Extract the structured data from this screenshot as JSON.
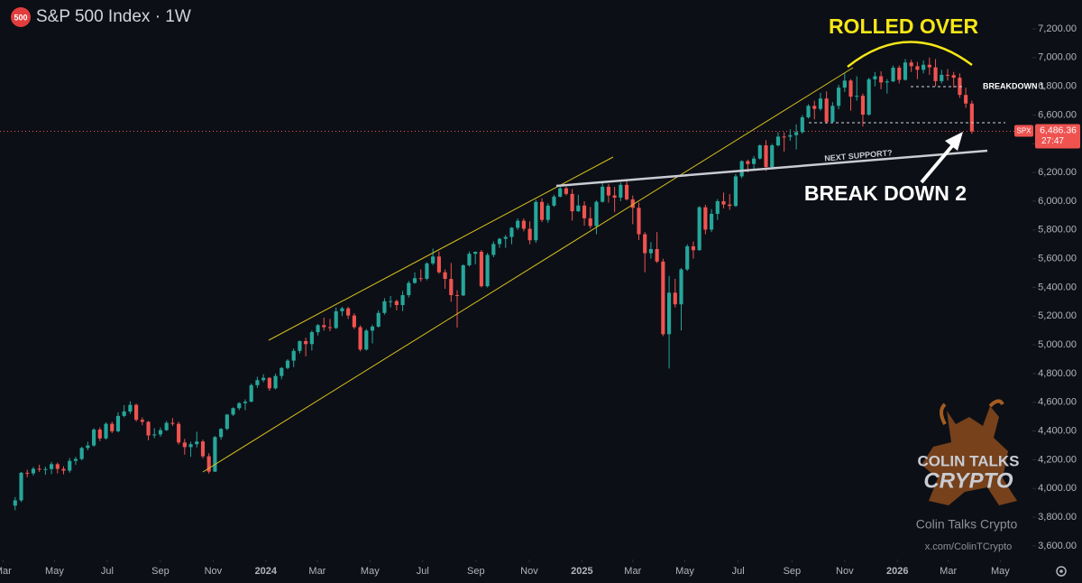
{
  "chart_data": {
    "type": "candlestick",
    "badge": "500",
    "title": "S&P 500 Index · 1W",
    "ylim": [
      3505,
      7401
    ],
    "yticks": [
      {
        "value": 3600,
        "label": "3,600.00"
      },
      {
        "value": 3800,
        "label": "3,800.00"
      },
      {
        "value": 4000,
        "label": "4,000.00"
      },
      {
        "value": 4200,
        "label": "4,200.00"
      },
      {
        "value": 4400,
        "label": "4,400.00"
      },
      {
        "value": 4600,
        "label": "4,600.00"
      },
      {
        "value": 4800,
        "label": "4,800.00"
      },
      {
        "value": 5000,
        "label": "5,000.00"
      },
      {
        "value": 5200,
        "label": "5,200.00"
      },
      {
        "value": 5400,
        "label": "5,400.00"
      },
      {
        "value": 5600,
        "label": "5,600.00"
      },
      {
        "value": 5800,
        "label": "5,800.00"
      },
      {
        "value": 6000,
        "label": "6,000.00"
      },
      {
        "value": 6200,
        "label": "6,200.00"
      },
      {
        "value": 6400,
        "label": "6,400.00"
      },
      {
        "value": 6600,
        "label": "6,600.00"
      },
      {
        "value": 6800,
        "label": "6,800.00"
      },
      {
        "value": 7000,
        "label": "7,000.00"
      },
      {
        "value": 7200,
        "label": "7,200.00"
      }
    ],
    "xlim": [
      -2.5,
      168
    ],
    "xticks": [
      {
        "value": -2,
        "label": "Mar"
      },
      {
        "value": 6.5,
        "label": "May"
      },
      {
        "value": 15.2,
        "label": "Jul"
      },
      {
        "value": 24,
        "label": "Sep"
      },
      {
        "value": 32.7,
        "label": "Nov"
      },
      {
        "value": 41.4,
        "label": "2024"
      },
      {
        "value": 49.9,
        "label": "Mar"
      },
      {
        "value": 58.6,
        "label": "May"
      },
      {
        "value": 67.3,
        "label": "Jul"
      },
      {
        "value": 76.1,
        "label": "Sep"
      },
      {
        "value": 84.9,
        "label": "Nov"
      },
      {
        "value": 93.6,
        "label": "2025"
      },
      {
        "value": 102,
        "label": "Mar"
      },
      {
        "value": 110.6,
        "label": "May"
      },
      {
        "value": 119.4,
        "label": "Jul"
      },
      {
        "value": 128.3,
        "label": "Sep"
      },
      {
        "value": 137,
        "label": "Nov"
      },
      {
        "value": 145.7,
        "label": "2026"
      },
      {
        "value": 154.1,
        "label": "Mar"
      },
      {
        "value": 162.7,
        "label": "May"
      }
    ],
    "series": [
      {
        "name": "SPX",
        "up_color": "#26a69a",
        "down_color": "#ef5350",
        "values": [
          [
            3880,
            3940,
            3848,
            3917
          ],
          [
            3917,
            4115,
            3905,
            4109
          ],
          [
            4109,
            4130,
            4078,
            4105
          ],
          [
            4105,
            4150,
            4090,
            4137
          ],
          [
            4137,
            4165,
            4115,
            4133
          ],
          [
            4133,
            4152,
            4095,
            4135
          ],
          [
            4135,
            4185,
            4100,
            4169
          ],
          [
            4169,
            4180,
            4105,
            4136
          ],
          [
            4136,
            4155,
            4098,
            4124
          ],
          [
            4124,
            4212,
            4110,
            4192
          ],
          [
            4192,
            4220,
            4165,
            4205
          ],
          [
            4205,
            4290,
            4195,
            4282
          ],
          [
            4282,
            4325,
            4265,
            4299
          ],
          [
            4299,
            4420,
            4290,
            4410
          ],
          [
            4410,
            4425,
            4330,
            4348
          ],
          [
            4348,
            4460,
            4340,
            4450
          ],
          [
            4450,
            4465,
            4385,
            4398
          ],
          [
            4398,
            4530,
            4390,
            4505
          ],
          [
            4505,
            4580,
            4495,
            4536
          ],
          [
            4536,
            4607,
            4520,
            4582
          ],
          [
            4582,
            4590,
            4465,
            4478
          ],
          [
            4478,
            4495,
            4440,
            4464
          ],
          [
            4464,
            4470,
            4335,
            4369
          ],
          [
            4369,
            4420,
            4350,
            4376
          ],
          [
            4376,
            4425,
            4360,
            4406
          ],
          [
            4406,
            4470,
            4400,
            4457
          ],
          [
            4457,
            4490,
            4435,
            4450
          ],
          [
            4450,
            4465,
            4305,
            4320
          ],
          [
            4320,
            4345,
            4235,
            4288
          ],
          [
            4288,
            4325,
            4220,
            4308
          ],
          [
            4308,
            4395,
            4285,
            4327
          ],
          [
            4327,
            4340,
            4210,
            4224
          ],
          [
            4224,
            4245,
            4103,
            4117
          ],
          [
            4117,
            4365,
            4115,
            4358
          ],
          [
            4358,
            4420,
            4340,
            4415
          ],
          [
            4415,
            4520,
            4405,
            4514
          ],
          [
            4514,
            4565,
            4505,
            4559
          ],
          [
            4559,
            4600,
            4545,
            4594
          ],
          [
            4594,
            4620,
            4545,
            4604
          ],
          [
            4604,
            4730,
            4600,
            4719
          ],
          [
            4719,
            4778,
            4700,
            4754
          ],
          [
            4754,
            4795,
            4740,
            4770
          ],
          [
            4770,
            4775,
            4680,
            4697
          ],
          [
            4697,
            4800,
            4690,
            4783
          ],
          [
            4783,
            4845,
            4760,
            4839
          ],
          [
            4839,
            4900,
            4830,
            4890
          ],
          [
            4890,
            4975,
            4845,
            4958
          ],
          [
            4958,
            5030,
            4940,
            5026
          ],
          [
            5026,
            5050,
            4920,
            5005
          ],
          [
            5005,
            5100,
            4960,
            5088
          ],
          [
            5088,
            5145,
            5065,
            5137
          ],
          [
            5137,
            5190,
            5100,
            5123
          ],
          [
            5123,
            5180,
            5095,
            5117
          ],
          [
            5117,
            5260,
            5110,
            5234
          ],
          [
            5234,
            5265,
            5200,
            5254
          ],
          [
            5254,
            5265,
            5180,
            5204
          ],
          [
            5204,
            5220,
            5110,
            5123
          ],
          [
            5123,
            5135,
            4955,
            4967
          ],
          [
            4967,
            5110,
            4960,
            5099
          ],
          [
            5099,
            5140,
            5010,
            5127
          ],
          [
            5127,
            5240,
            5120,
            5222
          ],
          [
            5222,
            5325,
            5210,
            5303
          ],
          [
            5303,
            5340,
            5260,
            5304
          ],
          [
            5304,
            5315,
            5240,
            5277
          ],
          [
            5277,
            5375,
            5235,
            5346
          ],
          [
            5346,
            5445,
            5330,
            5431
          ],
          [
            5431,
            5505,
            5425,
            5464
          ],
          [
            5464,
            5525,
            5440,
            5460
          ],
          [
            5460,
            5575,
            5450,
            5567
          ],
          [
            5567,
            5670,
            5555,
            5615
          ],
          [
            5615,
            5650,
            5495,
            5505
          ],
          [
            5505,
            5525,
            5390,
            5459
          ],
          [
            5459,
            5570,
            5300,
            5346
          ],
          [
            5346,
            5380,
            5120,
            5344
          ],
          [
            5344,
            5560,
            5340,
            5554
          ],
          [
            5554,
            5650,
            5545,
            5634
          ],
          [
            5634,
            5650,
            5560,
            5648
          ],
          [
            5648,
            5660,
            5400,
            5408
          ],
          [
            5408,
            5640,
            5400,
            5626
          ],
          [
            5626,
            5720,
            5610,
            5702
          ],
          [
            5702,
            5745,
            5675,
            5738
          ],
          [
            5738,
            5765,
            5675,
            5751
          ],
          [
            5751,
            5820,
            5700,
            5815
          ],
          [
            5815,
            5880,
            5800,
            5864
          ],
          [
            5864,
            5880,
            5790,
            5808
          ],
          [
            5808,
            5860,
            5700,
            5728
          ],
          [
            5728,
            6010,
            5710,
            5995
          ],
          [
            5995,
            6020,
            5855,
            5870
          ],
          [
            5870,
            5985,
            5850,
            5969
          ],
          [
            5969,
            6045,
            5960,
            6032
          ],
          [
            6032,
            6100,
            6025,
            6090
          ],
          [
            6090,
            6100,
            6040,
            6051
          ],
          [
            6051,
            6085,
            5865,
            5930
          ],
          [
            5930,
            6045,
            5925,
            5970
          ],
          [
            5970,
            6000,
            5830,
            5881
          ],
          [
            5881,
            5960,
            5810,
            5827
          ],
          [
            5827,
            6005,
            5770,
            5996
          ],
          [
            5996,
            6130,
            5990,
            6101
          ],
          [
            6101,
            6120,
            5990,
            6040
          ],
          [
            6040,
            6100,
            5925,
            6025
          ],
          [
            6025,
            6130,
            6000,
            6114
          ],
          [
            6114,
            6147,
            6005,
            6013
          ],
          [
            6013,
            6040,
            5840,
            5954
          ],
          [
            5954,
            5990,
            5730,
            5770
          ],
          [
            5770,
            5785,
            5505,
            5638
          ],
          [
            5638,
            5715,
            5600,
            5667
          ],
          [
            5667,
            5785,
            5570,
            5580
          ],
          [
            5580,
            5600,
            5060,
            5074
          ],
          [
            5074,
            5480,
            4835,
            5363
          ],
          [
            5363,
            5460,
            5260,
            5282
          ],
          [
            5282,
            5535,
            5100,
            5525
          ],
          [
            5525,
            5700,
            5515,
            5686
          ],
          [
            5686,
            5720,
            5600,
            5659
          ],
          [
            5659,
            5965,
            5655,
            5958
          ],
          [
            5958,
            5975,
            5770,
            5802
          ],
          [
            5802,
            5945,
            5785,
            5912
          ],
          [
            5912,
            6015,
            5870,
            6000
          ],
          [
            6000,
            6060,
            5950,
            5977
          ],
          [
            5977,
            6050,
            5940,
            5967
          ],
          [
            5967,
            6190,
            5960,
            6173
          ],
          [
            6173,
            6285,
            6160,
            6279
          ],
          [
            6279,
            6290,
            6200,
            6259
          ],
          [
            6259,
            6315,
            6220,
            6297
          ],
          [
            6297,
            6395,
            6290,
            6389
          ],
          [
            6389,
            6425,
            6210,
            6238
          ],
          [
            6238,
            6400,
            6230,
            6389
          ],
          [
            6389,
            6480,
            6380,
            6450
          ],
          [
            6450,
            6480,
            6345,
            6449
          ],
          [
            6449,
            6500,
            6420,
            6460
          ],
          [
            6460,
            6535,
            6360,
            6481
          ],
          [
            6481,
            6600,
            6470,
            6584
          ],
          [
            6584,
            6675,
            6575,
            6664
          ],
          [
            6664,
            6700,
            6570,
            6643
          ],
          [
            6643,
            6755,
            6630,
            6715
          ],
          [
            6715,
            6765,
            6540,
            6553
          ],
          [
            6553,
            6690,
            6545,
            6664
          ],
          [
            6664,
            6810,
            6640,
            6791
          ],
          [
            6791,
            6890,
            6760,
            6840
          ],
          [
            6840,
            6850,
            6630,
            6728
          ],
          [
            6728,
            6870,
            6700,
            6734
          ],
          [
            6734,
            6750,
            6520,
            6603
          ],
          [
            6603,
            6860,
            6595,
            6849
          ],
          [
            6849,
            6900,
            6800,
            6870
          ],
          [
            6870,
            6905,
            6780,
            6827
          ],
          [
            6827,
            6850,
            6750,
            6834
          ],
          [
            6834,
            6945,
            6830,
            6930
          ],
          [
            6930,
            6945,
            6820,
            6845
          ],
          [
            6845,
            6990,
            6840,
            6966
          ],
          [
            6966,
            6985,
            6900,
            6940
          ],
          [
            6940,
            6970,
            6850,
            6915
          ],
          [
            6915,
            6980,
            6890,
            6950
          ],
          [
            6950,
            7000,
            6880,
            6932
          ],
          [
            6932,
            6990,
            6800,
            6836
          ],
          [
            6836,
            6915,
            6820,
            6880
          ],
          [
            6880,
            6920,
            6840,
            6878
          ],
          [
            6878,
            6900,
            6790,
            6860
          ],
          [
            6860,
            6890,
            6720,
            6740
          ],
          [
            6740,
            6790,
            6650,
            6680
          ],
          [
            6680,
            6700,
            6470,
            6486.36
          ]
        ]
      }
    ],
    "last_price": {
      "value": 6486.36,
      "label": "6,486.36"
    },
    "countdown": "27:47",
    "annotations": {
      "rolled_over": "ROLLED OVER",
      "breakdown_1": "BREAKDOWN 1",
      "next_support": "NEXT SUPPORT?",
      "breakdown_2": "BREAK DOWN 2"
    },
    "watermark": {
      "logo_line_1": "COLIN TALKS",
      "logo_line_2": "CRYPTO",
      "name": "Colin Talks Crypto",
      "handle": "x.com/ColinTCrypto"
    }
  }
}
